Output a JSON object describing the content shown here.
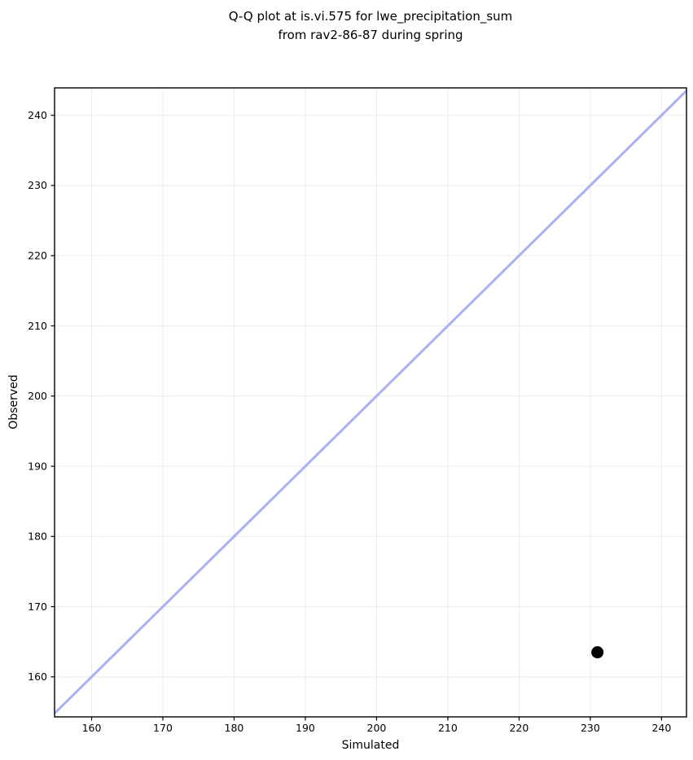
{
  "chart_data": {
    "type": "scatter",
    "title": "Q-Q plot at is.vi.575 for lwe_precipitation_sum\nfrom rav2-86-87 during spring",
    "xlabel": "Simulated",
    "ylabel": "Observed",
    "xlim": [
      154.8,
      243.5
    ],
    "ylim": [
      154.3,
      243.9
    ],
    "xticks": [
      160,
      170,
      180,
      190,
      200,
      210,
      220,
      230,
      240
    ],
    "yticks": [
      160,
      170,
      180,
      190,
      200,
      210,
      220,
      230,
      240
    ],
    "grid": true,
    "legend": null,
    "points": [
      {
        "x": 231.0,
        "y": 163.5
      }
    ],
    "identity_line": {
      "start": 154.3,
      "end": 243.9
    },
    "styles": {
      "identity_line_color": "#aab0f4",
      "identity_line_width": 3,
      "point_color": "#000000",
      "point_radius": 7.5,
      "grid_color": "#ebebeb",
      "spine_color": "#000000",
      "tick_color": "#000000",
      "background": "#ffffff"
    }
  }
}
